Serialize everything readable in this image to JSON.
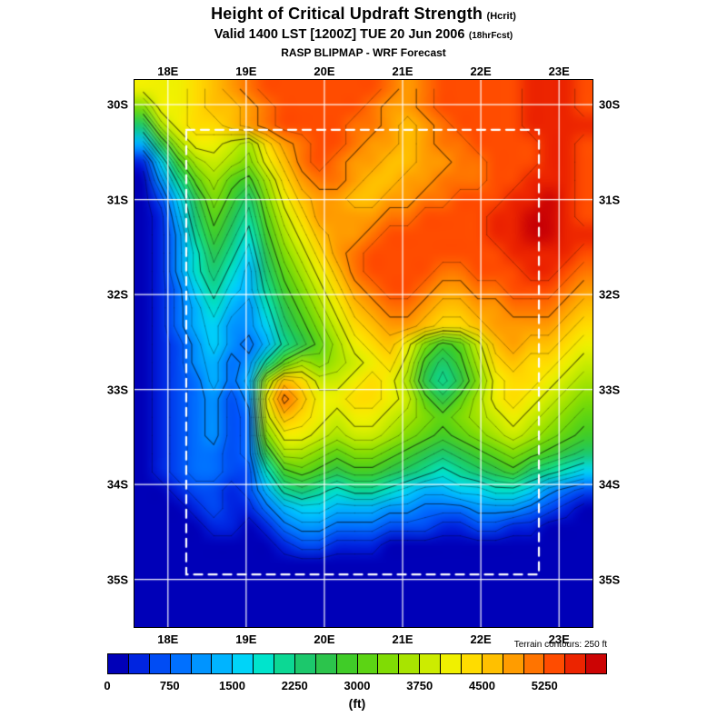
{
  "header": {
    "title": "Height of Critical Updraft Strength",
    "title_suffix": "(Hcrit)",
    "valid_line": "Valid 1400 LST [1200Z] TUE 20 Jun 2006",
    "valid_suffix": "(18hrFcst)",
    "model_line": "RASP BLIPMAP - WRF Forecast"
  },
  "chart_data": {
    "type": "heatmap",
    "title": "Height of Critical Updraft Strength (Hcrit)",
    "subtitle": "Valid 1400 LST [1200Z] TUE 20 Jun 2006 (18hrFcst)",
    "source_line": "RASP BLIPMAP - WRF Forecast",
    "units": "(ft)",
    "lon_ticks": {
      "labels": [
        "18E",
        "19E",
        "20E",
        "21E",
        "22E",
        "23E"
      ],
      "fracs": [
        0.073,
        0.2438,
        0.4146,
        0.5854,
        0.7562,
        0.927
      ]
    },
    "lat_ticks": {
      "labels": [
        "30S",
        "31S",
        "32S",
        "33S",
        "34S",
        "35S"
      ],
      "fracs": [
        0.045,
        0.2186,
        0.3922,
        0.5658,
        0.7394,
        0.913
      ]
    },
    "colorbar": {
      "levels": [
        0,
        750,
        1500,
        2250,
        3000,
        3750,
        4500,
        5250
      ],
      "level_fracs": [
        0,
        0.125,
        0.25,
        0.375,
        0.5,
        0.625,
        0.75,
        0.875
      ],
      "value_min": 0,
      "value_max": 6000,
      "step_ft": 250,
      "note": "Terrain contours: 250 ft",
      "palette": [
        "#0000b8",
        "#0024e0",
        "#004cf4",
        "#0070ff",
        "#0094ff",
        "#00b4ff",
        "#00d4f8",
        "#00e4cc",
        "#0cd894",
        "#1cc86c",
        "#2cc44c",
        "#40cc28",
        "#5cd414",
        "#80dc04",
        "#a8e400",
        "#ccec00",
        "#f0f000",
        "#ffdc00",
        "#ffc000",
        "#ff9c00",
        "#ff7400",
        "#ff4c00",
        "#ec2400",
        "#cc0404"
      ]
    },
    "grid": {
      "rows": 30,
      "cols": 26,
      "encoding": "each char is a palette/level index in base-24 (0-9,a-n), 250 ft per step",
      "values": [
        "ggghijklllllllkjklllllmmml",
        "dgghiijklllllkjjklllllmmml",
        "9eghhijkllllkkjijkllllmmmm",
        "5aeggfehjkllkjjijkkllllmml",
        "16befedgiklkjjiijjkklllmml",
        "048cecbehjkkjiijjkkkllmmml",
        "026adb9dgijjiijjkklllmmnml",
        "0159ca8cfhjjjjkkllllmmnnml",
        "0148b97begijjkllllllmmnnmm",
        "0147a86adfhjkllllllllmmmml",
        "01479759cegikllllkklllmmlk",
        "01368658bdfhjkllkjjkklllkj",
        "01357547acegijkkjiijjkkkji",
        "013564469bdfhijjihhijjjjih",
        "012464358aceghigdbcfijiihg",
        "01245348cedefghfb9behihhgf",
        "0123535eihffghgea8adghhgfe",
        "0123424gkigghhgfcaceghgfed",
        "0123423fihgfggfedcdefgfedc",
        "0123423dggfeffedcbcdefedcb",
        "0123323aeedcddcba9abcdcba9",
        "01233227bcbabba98789ab9876",
        "00122125898788765566776432",
        "00012113566555443334443210",
        "00001101344333222112211000",
        "00000000122111000000000000",
        "00000000000000000000000000",
        "00000000000000000000000000",
        "00000000000000000000000000",
        "00000000000000000000000000"
      ]
    },
    "inner_domain_box": {
      "x1": 0.113,
      "y1": 0.091,
      "x2": 0.883,
      "y2": 0.904
    },
    "contour_levels": [
      1,
      2,
      3,
      4,
      5,
      6,
      7,
      8,
      9,
      10,
      11,
      12,
      13,
      14,
      15,
      16,
      17,
      18,
      19,
      20,
      21,
      22
    ]
  }
}
